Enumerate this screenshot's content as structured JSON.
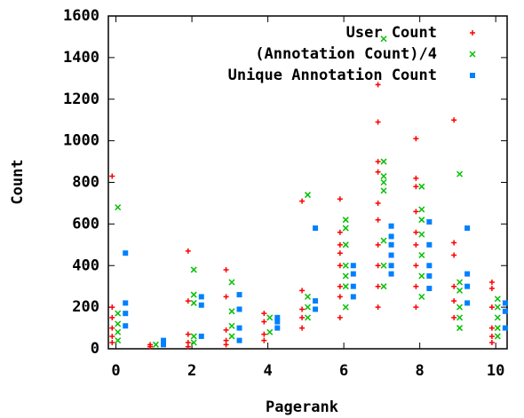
{
  "chart_data": {
    "type": "scatter",
    "x_label": "Pagerank",
    "y_label": "Count",
    "xlim": [
      -0.2,
      10.3
    ],
    "xticks": [
      0,
      2,
      4,
      6,
      8,
      10
    ],
    "ylim": [
      0,
      1600
    ],
    "yticks": [
      0,
      200,
      400,
      600,
      800,
      1000,
      1200,
      1400,
      1600
    ],
    "legend": "top-right",
    "series": [
      {
        "name": "User Count",
        "color": "#ff0000",
        "marker": "plus",
        "x": [
          -0.1,
          -0.1,
          -0.1,
          -0.1,
          -0.1,
          -0.1,
          0.9,
          0.9,
          1.9,
          1.9,
          1.9,
          1.9,
          1.9,
          2.9,
          2.9,
          2.9,
          2.9,
          2.9,
          3.9,
          3.9,
          3.9,
          3.9,
          4.9,
          4.9,
          4.9,
          4.9,
          4.9,
          5.9,
          5.9,
          5.9,
          5.9,
          5.9,
          5.9,
          5.9,
          5.9,
          6.9,
          6.9,
          6.9,
          6.9,
          6.9,
          6.9,
          6.9,
          6.9,
          6.9,
          6.9,
          7.9,
          7.9,
          7.9,
          7.9,
          7.9,
          7.9,
          7.9,
          7.9,
          7.9,
          8.9,
          8.9,
          8.9,
          8.9,
          8.9,
          8.9,
          9.9,
          9.9,
          9.9,
          9.9,
          9.9,
          9.9
        ],
        "values": [
          830,
          200,
          150,
          100,
          60,
          30,
          20,
          10,
          470,
          230,
          70,
          30,
          10,
          380,
          250,
          90,
          40,
          20,
          170,
          130,
          70,
          40,
          710,
          280,
          190,
          150,
          100,
          720,
          560,
          500,
          460,
          400,
          300,
          250,
          150,
          1270,
          1090,
          900,
          850,
          700,
          620,
          500,
          400,
          300,
          200,
          1010,
          820,
          780,
          660,
          560,
          500,
          400,
          300,
          200,
          1100,
          510,
          450,
          300,
          230,
          150,
          320,
          290,
          200,
          100,
          60,
          30
        ]
      },
      {
        "name": "(Annotation Count)/4",
        "color": "#00c000",
        "marker": "cross",
        "x": [
          0.05,
          0.05,
          0.05,
          0.05,
          0.05,
          1.05,
          2.05,
          2.05,
          2.05,
          2.05,
          2.05,
          3.05,
          3.05,
          3.05,
          3.05,
          4.05,
          4.05,
          5.05,
          5.05,
          5.05,
          5.05,
          6.05,
          6.05,
          6.05,
          6.05,
          6.05,
          6.05,
          6.05,
          7.05,
          7.05,
          7.05,
          7.05,
          7.05,
          7.05,
          7.05,
          7.05,
          8.05,
          8.05,
          8.05,
          8.05,
          8.05,
          8.05,
          8.05,
          9.05,
          9.05,
          9.05,
          9.05,
          9.05,
          9.05,
          10.05,
          10.05,
          10.05,
          10.05,
          10.05
        ],
        "values": [
          680,
          170,
          120,
          80,
          40,
          20,
          380,
          260,
          220,
          60,
          30,
          320,
          180,
          110,
          60,
          150,
          80,
          740,
          250,
          200,
          150,
          620,
          580,
          500,
          400,
          350,
          300,
          200,
          1490,
          900,
          830,
          800,
          760,
          520,
          400,
          300,
          780,
          670,
          620,
          550,
          450,
          350,
          250,
          840,
          320,
          280,
          200,
          150,
          100,
          240,
          200,
          150,
          100,
          60
        ]
      },
      {
        "name": "Unique Annotation Count",
        "color": "#0080ff",
        "marker": "square",
        "x": [
          0.25,
          0.25,
          0.25,
          0.25,
          1.25,
          1.25,
          2.25,
          2.25,
          2.25,
          3.25,
          3.25,
          3.25,
          3.25,
          4.25,
          4.25,
          4.25,
          5.25,
          5.25,
          5.25,
          6.25,
          6.25,
          6.25,
          6.25,
          7.25,
          7.25,
          7.25,
          7.25,
          7.25,
          7.25,
          8.25,
          8.25,
          8.25,
          8.25,
          8.25,
          9.25,
          9.25,
          9.25,
          9.25,
          10.25,
          10.25,
          10.25
        ],
        "values": [
          460,
          220,
          170,
          110,
          40,
          20,
          250,
          210,
          60,
          260,
          190,
          100,
          40,
          150,
          130,
          100,
          580,
          230,
          190,
          400,
          360,
          300,
          250,
          590,
          540,
          500,
          450,
          400,
          360,
          610,
          500,
          400,
          350,
          290,
          580,
          360,
          300,
          220,
          220,
          180,
          100
        ]
      }
    ]
  }
}
